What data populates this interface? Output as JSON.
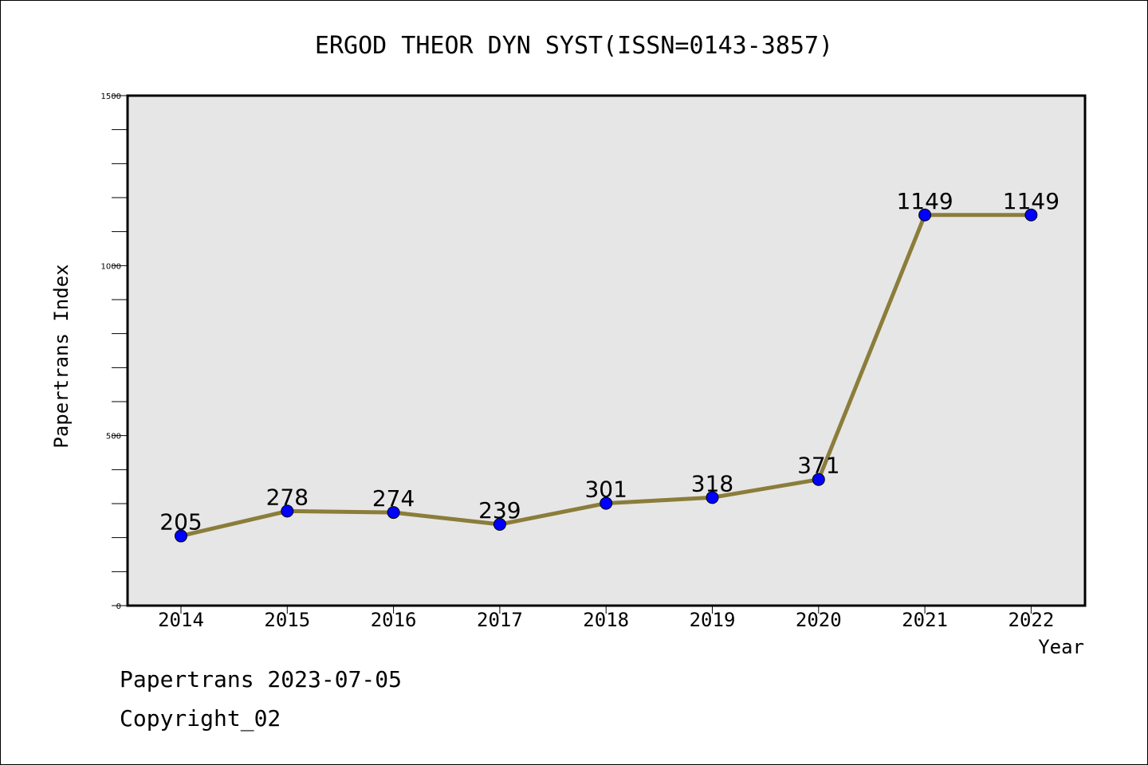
{
  "chart_data": {
    "type": "line",
    "title": "ERGOD THEOR DYN SYST(ISSN=0143-3857)",
    "xlabel": "Year",
    "ylabel": "Papertrans Index",
    "categories": [
      "2014",
      "2015",
      "2016",
      "2017",
      "2018",
      "2019",
      "2020",
      "2021",
      "2022"
    ],
    "series": [
      {
        "values": [
          205,
          278,
          274,
          239,
          301,
          318,
          371,
          1149,
          1149
        ]
      }
    ],
    "ylim": [
      0,
      1500
    ],
    "y_ticks": [
      0,
      500,
      1000,
      1500
    ],
    "y_minor_step": 100,
    "data_labels": true,
    "grid": false,
    "legend": "none",
    "colors": {
      "line": "#8B7D3A",
      "marker": "#0000FF",
      "plot_background": "#E6E6E6",
      "frame": "#000000"
    }
  },
  "footer": {
    "line1": "Papertrans 2023-07-05",
    "line2": "Copyright_02"
  }
}
